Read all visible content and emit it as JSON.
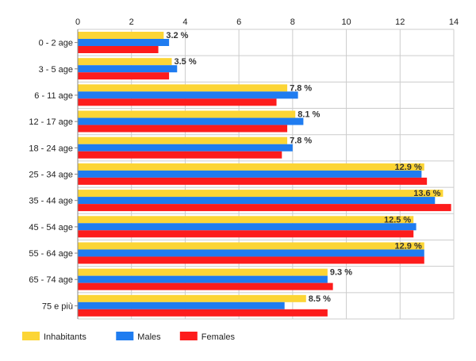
{
  "chart_data": {
    "type": "bar",
    "orientation": "horizontal",
    "categories": [
      "0 - 2 age",
      "3 - 5 age",
      "6 - 11 age",
      "12 - 17 age",
      "18 - 24 age",
      "25 - 34 age",
      "35 - 44 age",
      "45 - 54 age",
      "55 - 64 age",
      "65 - 74 age",
      "75 e più"
    ],
    "series": [
      {
        "name": "Inhabitants",
        "color": "#fcd535",
        "values": [
          3.2,
          3.5,
          7.8,
          8.1,
          7.8,
          12.9,
          13.6,
          12.5,
          12.9,
          9.3,
          8.5
        ]
      },
      {
        "name": "Males",
        "color": "#1f7cf0",
        "values": [
          3.4,
          3.7,
          8.2,
          8.4,
          8.0,
          12.8,
          13.3,
          12.6,
          12.9,
          9.3,
          7.7
        ]
      },
      {
        "name": "Females",
        "color": "#fd1c1c",
        "values": [
          3.0,
          3.4,
          7.4,
          7.8,
          7.6,
          13.0,
          13.9,
          12.5,
          12.9,
          9.5,
          9.3
        ]
      }
    ],
    "data_labels": [
      "3.2 %",
      "3.5 %",
      "7.8 %",
      "8.1 %",
      "7.8 %",
      "12.9 %",
      "13.6 %",
      "12.5 %",
      "12.9 %",
      "9.3 %",
      "8.5 %"
    ],
    "xlim": [
      0,
      14
    ],
    "x_ticks": [
      "0",
      "2",
      "4",
      "6",
      "8",
      "10",
      "12",
      "14"
    ],
    "x_axis_position": "top",
    "grid": true,
    "legend_position": "bottom-left",
    "title": "",
    "xlabel": "",
    "ylabel": ""
  }
}
